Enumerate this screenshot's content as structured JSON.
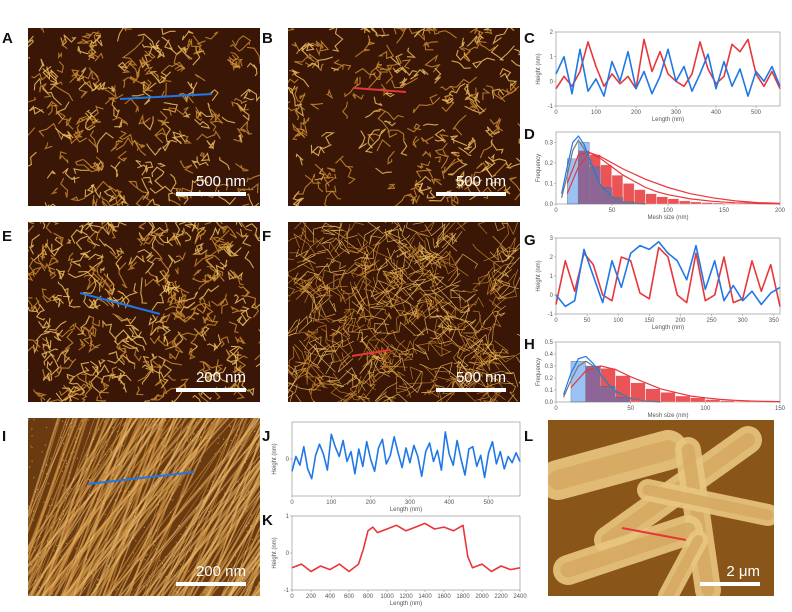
{
  "panels": {
    "A": {
      "label": "A",
      "scalebar": "500 nm"
    },
    "B": {
      "label": "B",
      "scalebar": "500 nm"
    },
    "C": {
      "label": "C",
      "ylabel": "Height (nm)",
      "xlabel": "Length (nm)"
    },
    "D": {
      "label": "D",
      "ylabel": "Frequency",
      "xlabel": "Mesh size (nm)"
    },
    "E": {
      "label": "E",
      "scalebar": "200 nm"
    },
    "F": {
      "label": "F",
      "scalebar": "500 nm"
    },
    "G": {
      "label": "G",
      "ylabel": "Height (nm)",
      "xlabel": "Length (nm)"
    },
    "H": {
      "label": "H",
      "ylabel": "Frequency",
      "xlabel": "Mesh size (nm)"
    },
    "I": {
      "label": "I",
      "scalebar": "200 nm"
    },
    "J": {
      "label": "J",
      "ylabel": "Height (nm)",
      "xlabel": "Length (nm)"
    },
    "K": {
      "label": "K",
      "ylabel": "Height (nm)",
      "xlabel": "Length (nm)"
    },
    "L": {
      "label": "L",
      "scalebar": "2 μm"
    }
  },
  "colors": {
    "blue": "#1f78e6",
    "red": "#e8363a",
    "afm_dark": "#3a1606",
    "afm_fiber": "#e8b050"
  },
  "chart_data": [
    {
      "id": "C",
      "type": "line",
      "xlim": [
        0,
        560
      ],
      "ylim": [
        -1,
        2
      ],
      "xticks": [
        "0",
        "100",
        "200",
        "300",
        "400",
        "500"
      ],
      "yticks": [
        "-1",
        "0",
        "1",
        "2"
      ],
      "series": [
        {
          "color": "#e8363a",
          "x": [
            0,
            20,
            40,
            60,
            80,
            100,
            120,
            140,
            160,
            180,
            200,
            220,
            240,
            260,
            280,
            300,
            320,
            340,
            360,
            380,
            400,
            420,
            440,
            460,
            480,
            500,
            520,
            540,
            560
          ],
          "y": [
            -0.3,
            0.2,
            -0.2,
            0.4,
            1.6,
            0.6,
            -0.2,
            0.3,
            -0.1,
            0.2,
            -0.3,
            1.7,
            0.4,
            1.2,
            0.3,
            0,
            -0.2,
            0.3,
            1.6,
            0.5,
            -0.1,
            0.2,
            1.5,
            1.2,
            1.7,
            0.3,
            -0.2,
            0.4,
            -0.3
          ]
        },
        {
          "color": "#1f78e6",
          "x": [
            0,
            20,
            40,
            60,
            80,
            100,
            120,
            140,
            160,
            180,
            200,
            220,
            240,
            260,
            280,
            300,
            320,
            340,
            360,
            380,
            400,
            420,
            440,
            460,
            480,
            500,
            520,
            540,
            560
          ],
          "y": [
            0.3,
            1.0,
            -0.5,
            1.3,
            -0.4,
            0.1,
            -0.6,
            0.8,
            0.0,
            1.2,
            -0.3,
            0.4,
            -0.5,
            0.2,
            1.3,
            0.0,
            0.6,
            -0.4,
            0.3,
            1.1,
            -0.3,
            0.8,
            -0.2,
            0.5,
            -0.6,
            0.4,
            0.0,
            0.6,
            -0.2
          ]
        }
      ]
    },
    {
      "id": "D",
      "type": "bar",
      "xlim": [
        0,
        200
      ],
      "ylim": [
        0,
        0.35
      ],
      "xticks": [
        "0",
        "50",
        "100",
        "150",
        "200"
      ],
      "yticks": [
        "0.0",
        "0.1",
        "0.2",
        "0.3"
      ],
      "series": [
        {
          "color": "#e8363a",
          "bin_starts": [
            20,
            30,
            40,
            50,
            60,
            70,
            80,
            90,
            100,
            110,
            120,
            130,
            140,
            150,
            160,
            170
          ],
          "values": [
            0.26,
            0.24,
            0.19,
            0.14,
            0.1,
            0.07,
            0.05,
            0.035,
            0.025,
            0.015,
            0.01,
            0.007,
            0.005,
            0.003,
            0.002,
            0.001
          ]
        },
        {
          "color": "#1f78e6",
          "bin_starts": [
            10,
            20,
            30,
            40,
            50,
            60
          ],
          "values": [
            0.22,
            0.3,
            0.18,
            0.08,
            0.03,
            0.01
          ]
        }
      ],
      "fits": [
        {
          "color": "#e8363a",
          "x": [
            10,
            20,
            30,
            40,
            50,
            60,
            70,
            80,
            90,
            100,
            120,
            140,
            160,
            180,
            200
          ],
          "y": [
            0.1,
            0.24,
            0.25,
            0.22,
            0.18,
            0.14,
            0.11,
            0.08,
            0.06,
            0.045,
            0.025,
            0.013,
            0.006,
            0.003,
            0.001
          ]
        },
        {
          "color": "#e8363a",
          "x": [
            10,
            20,
            30,
            40,
            60,
            80,
            100,
            120,
            140,
            160,
            180,
            200
          ],
          "y": [
            0.05,
            0.18,
            0.25,
            0.23,
            0.17,
            0.12,
            0.08,
            0.05,
            0.03,
            0.015,
            0.007,
            0.003
          ]
        },
        {
          "color": "#1f78e6",
          "x": [
            5,
            10,
            15,
            20,
            25,
            30,
            35,
            40,
            50,
            60,
            70,
            80
          ],
          "y": [
            0.05,
            0.18,
            0.3,
            0.33,
            0.29,
            0.22,
            0.15,
            0.09,
            0.035,
            0.01,
            0.003,
            0.001
          ]
        },
        {
          "color": "#777777",
          "x": [
            5,
            10,
            15,
            20,
            25,
            30,
            35,
            40,
            50,
            60,
            70,
            80
          ],
          "y": [
            0.03,
            0.14,
            0.26,
            0.31,
            0.27,
            0.2,
            0.13,
            0.08,
            0.03,
            0.01,
            0.003,
            0.001
          ]
        }
      ]
    },
    {
      "id": "G",
      "type": "line",
      "xlim": [
        0,
        360
      ],
      "ylim": [
        -1,
        3
      ],
      "xticks": [
        "0",
        "50",
        "100",
        "150",
        "200",
        "250",
        "300",
        "350"
      ],
      "yticks": [
        "-1",
        "0",
        "1",
        "2",
        "3"
      ],
      "series": [
        {
          "color": "#e8363a",
          "x": [
            0,
            15,
            30,
            45,
            60,
            75,
            90,
            105,
            120,
            135,
            150,
            165,
            180,
            195,
            210,
            225,
            240,
            255,
            270,
            285,
            300,
            315,
            330,
            345,
            360
          ],
          "y": [
            -0.5,
            1.8,
            0.2,
            2.2,
            1.6,
            0.0,
            -0.3,
            2.0,
            1.8,
            0.1,
            -0.2,
            2.5,
            2.0,
            0.0,
            -0.4,
            2.2,
            -0.3,
            0.0,
            2.0,
            -0.4,
            -0.2,
            1.8,
            0.2,
            1.6,
            -0.6
          ]
        },
        {
          "color": "#1f78e6",
          "x": [
            0,
            15,
            30,
            45,
            60,
            75,
            90,
            105,
            120,
            135,
            150,
            165,
            180,
            195,
            210,
            225,
            240,
            255,
            270,
            285,
            300,
            315,
            330,
            345,
            360
          ],
          "y": [
            0.0,
            -0.6,
            -0.3,
            2.4,
            1.0,
            -0.4,
            1.8,
            0.4,
            2.2,
            2.6,
            2.4,
            2.8,
            2.2,
            1.8,
            0.8,
            2.6,
            0.3,
            1.8,
            -0.3,
            0.5,
            -0.3,
            0.2,
            -0.5,
            0.1,
            0.4
          ]
        }
      ]
    },
    {
      "id": "H",
      "type": "bar",
      "xlim": [
        0,
        150
      ],
      "ylim": [
        0,
        0.5
      ],
      "xticks": [
        "0",
        "50",
        "100",
        "150"
      ],
      "yticks": [
        "0.0",
        "0.1",
        "0.2",
        "0.3",
        "0.4",
        "0.5"
      ],
      "series": [
        {
          "color": "#e8363a",
          "bin_starts": [
            20,
            30,
            40,
            50,
            60,
            70,
            80,
            90,
            100,
            110,
            120,
            130
          ],
          "values": [
            0.3,
            0.28,
            0.22,
            0.16,
            0.11,
            0.08,
            0.05,
            0.035,
            0.02,
            0.012,
            0.007,
            0.004
          ]
        },
        {
          "color": "#1f78e6",
          "bin_starts": [
            10,
            20,
            30,
            40
          ],
          "values": [
            0.34,
            0.3,
            0.13,
            0.04
          ]
        }
      ],
      "fits": [
        {
          "color": "#e8363a",
          "x": [
            10,
            20,
            30,
            40,
            50,
            60,
            70,
            80,
            90,
            100,
            110,
            120,
            130,
            140,
            150
          ],
          "y": [
            0.12,
            0.26,
            0.3,
            0.27,
            0.21,
            0.16,
            0.11,
            0.08,
            0.05,
            0.035,
            0.022,
            0.014,
            0.008,
            0.005,
            0.003
          ]
        },
        {
          "color": "#1f78e6",
          "x": [
            5,
            10,
            15,
            20,
            25,
            30,
            35,
            40,
            50,
            60,
            70
          ],
          "y": [
            0.06,
            0.24,
            0.36,
            0.38,
            0.32,
            0.23,
            0.15,
            0.09,
            0.03,
            0.008,
            0.002
          ]
        },
        {
          "color": "#777777",
          "x": [
            5,
            10,
            15,
            20,
            25,
            30,
            35,
            40,
            50,
            60,
            70
          ],
          "y": [
            0.04,
            0.18,
            0.3,
            0.34,
            0.3,
            0.22,
            0.14,
            0.08,
            0.03,
            0.008,
            0.002
          ]
        }
      ]
    },
    {
      "id": "J",
      "type": "line",
      "xlim": [
        0,
        580
      ],
      "ylim": [
        -3,
        3
      ],
      "xticks": [
        "0",
        "100",
        "200",
        "300",
        "400",
        "500"
      ],
      "yticks": [
        "0"
      ],
      "series": [
        {
          "color": "#1f78e6",
          "x": [
            0,
            10,
            20,
            30,
            40,
            50,
            60,
            70,
            80,
            90,
            100,
            110,
            120,
            130,
            140,
            150,
            160,
            170,
            180,
            190,
            200,
            210,
            220,
            230,
            240,
            250,
            260,
            270,
            280,
            290,
            300,
            310,
            320,
            330,
            340,
            350,
            360,
            370,
            380,
            390,
            400,
            410,
            420,
            430,
            440,
            450,
            460,
            470,
            480,
            490,
            500,
            510,
            520,
            530,
            540,
            550,
            560,
            570,
            580
          ],
          "y": [
            -1.0,
            0.2,
            -0.5,
            1.0,
            -0.8,
            -1.6,
            0.3,
            1.2,
            0.4,
            -0.9,
            2.0,
            1.0,
            0.2,
            1.5,
            -0.2,
            0.6,
            -1.2,
            0.8,
            -0.6,
            1.4,
            0.0,
            -1.0,
            0.9,
            1.6,
            -0.4,
            0.3,
            1.8,
            0.5,
            -0.7,
            0.9,
            -0.3,
            1.1,
            0.2,
            -1.4,
            0.6,
            1.3,
            -0.2,
            0.7,
            -0.9,
            2.2,
            0.4,
            -0.5,
            1.5,
            0.0,
            -1.3,
            0.8,
            1.0,
            -0.6,
            0.3,
            -1.5,
            0.5,
            1.4,
            -0.4,
            0.6,
            -0.8,
            0.2,
            -0.3,
            0.5,
            -0.2
          ]
        }
      ]
    },
    {
      "id": "K",
      "type": "line",
      "xlim": [
        0,
        2400
      ],
      "ylim": [
        -1,
        1
      ],
      "xticks": [
        "0",
        "200",
        "400",
        "600",
        "800",
        "1000",
        "1200",
        "1400",
        "1600",
        "1800",
        "2000",
        "2200",
        "2400"
      ],
      "yticks": [
        "-1",
        "0",
        "1"
      ],
      "series": [
        {
          "color": "#e8363a",
          "x": [
            0,
            100,
            200,
            300,
            400,
            500,
            600,
            700,
            750,
            800,
            850,
            900,
            1000,
            1100,
            1200,
            1300,
            1400,
            1500,
            1600,
            1700,
            1800,
            1850,
            1900,
            2000,
            2100,
            2200,
            2300,
            2400
          ],
          "y": [
            -0.4,
            -0.3,
            -0.5,
            -0.35,
            -0.45,
            -0.3,
            -0.5,
            -0.3,
            0.1,
            0.6,
            0.7,
            0.55,
            0.65,
            0.75,
            0.6,
            0.7,
            0.8,
            0.65,
            0.7,
            0.6,
            0.75,
            -0.1,
            -0.4,
            -0.3,
            -0.5,
            -0.35,
            -0.45,
            -0.4
          ]
        }
      ]
    }
  ]
}
